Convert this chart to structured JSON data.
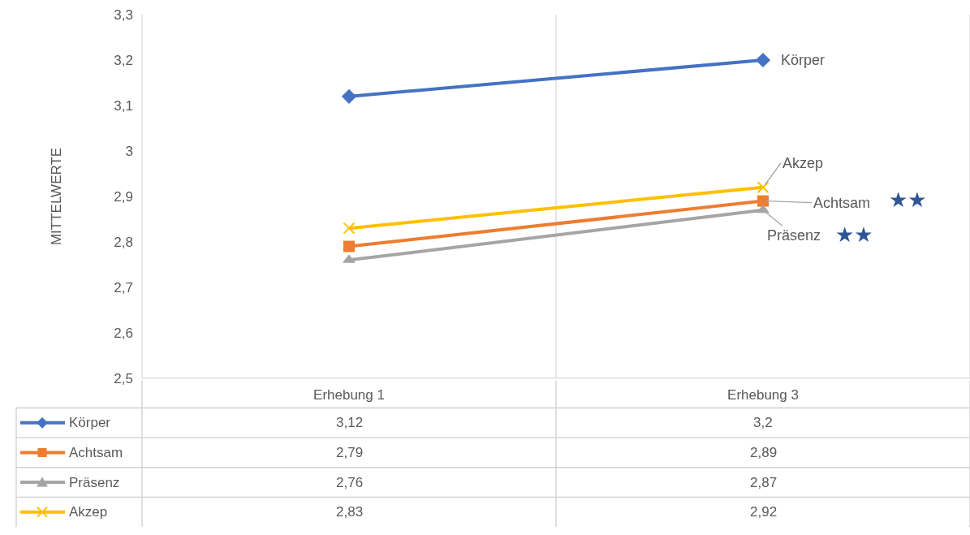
{
  "chart_data": {
    "type": "line",
    "ylabel": "MITTELWERTE",
    "categories": [
      "Erhebung 1",
      "Erhebung 3"
    ],
    "series": [
      {
        "name": "Körper",
        "color": "#4472c4",
        "values": [
          3.12,
          3.2
        ],
        "value_labels": [
          "3,12",
          "3,2"
        ],
        "marker": "diamond"
      },
      {
        "name": "Achtsam",
        "color": "#ed7d31",
        "values": [
          2.79,
          2.89
        ],
        "value_labels": [
          "2,79",
          "2,89"
        ],
        "marker": "square"
      },
      {
        "name": "Präsenz",
        "color": "#a5a5a5",
        "values": [
          2.76,
          2.87
        ],
        "value_labels": [
          "2,76",
          "2,87"
        ],
        "marker": "triangle"
      },
      {
        "name": "Akzep",
        "color": "#ffc000",
        "values": [
          2.83,
          2.92
        ],
        "value_labels": [
          "2,83",
          "2,92"
        ],
        "marker": "cross"
      }
    ],
    "ylim": [
      2.5,
      3.3
    ],
    "yticks": [
      {
        "value": 2.5,
        "label": "2,5"
      },
      {
        "value": 2.6,
        "label": "2,6"
      },
      {
        "value": 2.7,
        "label": "2,7"
      },
      {
        "value": 2.8,
        "label": "2,8"
      },
      {
        "value": 2.9,
        "label": "2,9"
      },
      {
        "value": 3.0,
        "label": "3"
      },
      {
        "value": 3.1,
        "label": "3,1"
      },
      {
        "value": 3.2,
        "label": "3,2"
      },
      {
        "value": 3.3,
        "label": "3,3"
      }
    ],
    "annotations": [
      "★★",
      "★★"
    ],
    "grid": "x",
    "legend": "bottom",
    "line_style": "solid"
  }
}
